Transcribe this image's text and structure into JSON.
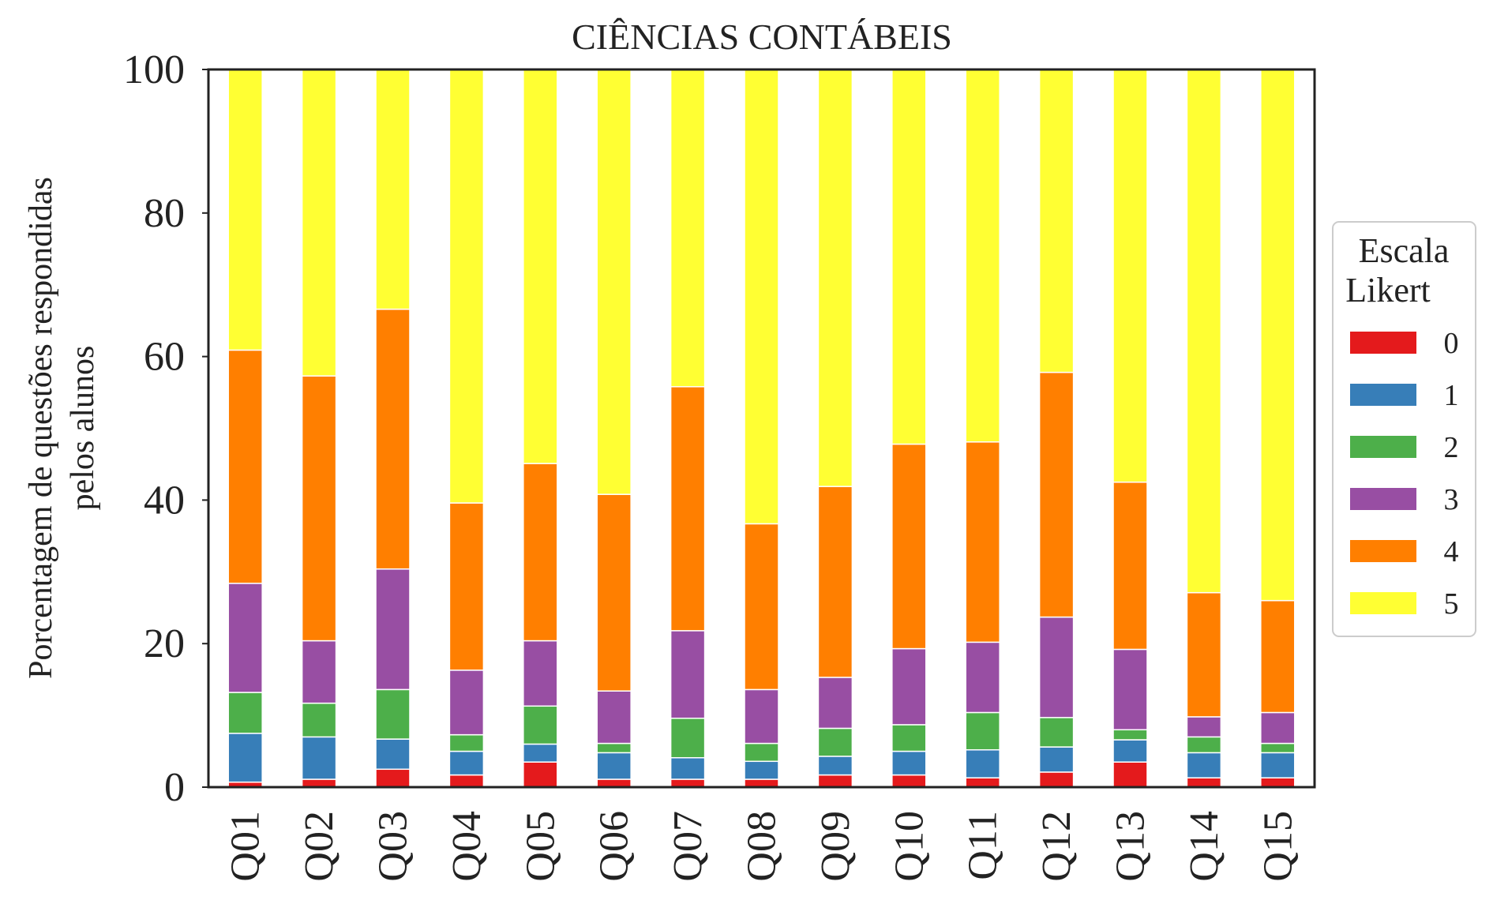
{
  "chart_data": {
    "type": "bar",
    "stacked": true,
    "title": "CIÊNCIAS CONTÁBEIS",
    "xlabel": "",
    "ylabel_lines": [
      "Porcentagem de questões respondidas",
      "pelos alunos"
    ],
    "ylim": [
      0,
      100
    ],
    "yticks": [
      0,
      20,
      40,
      60,
      80,
      100
    ],
    "grid": false,
    "legend_placement": "center-right outside",
    "legend_title_lines": [
      "Escala",
      "Likert"
    ],
    "categories": [
      "Q01",
      "Q02",
      "Q03",
      "Q04",
      "Q05",
      "Q06",
      "Q07",
      "Q08",
      "Q09",
      "Q10",
      "Q11",
      "Q12",
      "Q13",
      "Q14",
      "Q15"
    ],
    "series": [
      {
        "name": "0",
        "color": "#e41a1c",
        "values": [
          0.7,
          1.1,
          2.5,
          1.7,
          3.5,
          1.1,
          1.1,
          1.1,
          1.7,
          1.7,
          1.3,
          2.1,
          3.5,
          1.3,
          1.3
        ]
      },
      {
        "name": "1",
        "color": "#377eb8",
        "values": [
          6.8,
          5.9,
          4.2,
          3.3,
          2.5,
          3.7,
          3.0,
          2.5,
          2.6,
          3.3,
          3.9,
          3.5,
          3.1,
          3.5,
          3.5
        ]
      },
      {
        "name": "2",
        "color": "#4daf4a",
        "values": [
          5.7,
          4.7,
          6.9,
          2.3,
          5.3,
          1.3,
          5.5,
          2.5,
          3.9,
          3.7,
          5.2,
          4.1,
          1.4,
          2.2,
          1.3
        ]
      },
      {
        "name": "3",
        "color": "#984ea3",
        "values": [
          15.2,
          8.7,
          16.8,
          9.0,
          9.1,
          7.3,
          12.2,
          7.5,
          7.1,
          10.6,
          9.8,
          14.0,
          11.2,
          2.8,
          4.3
        ]
      },
      {
        "name": "4",
        "color": "#ff7f00",
        "values": [
          32.5,
          36.9,
          36.2,
          23.3,
          24.7,
          27.4,
          34.0,
          23.1,
          26.6,
          28.5,
          27.9,
          34.1,
          23.3,
          17.3,
          15.6
        ]
      },
      {
        "name": "5",
        "color": "#ffff33",
        "values": [
          39.1,
          42.7,
          33.4,
          60.4,
          54.9,
          59.2,
          44.2,
          63.3,
          58.1,
          52.2,
          51.9,
          42.2,
          57.5,
          72.9,
          74.0
        ]
      }
    ]
  }
}
